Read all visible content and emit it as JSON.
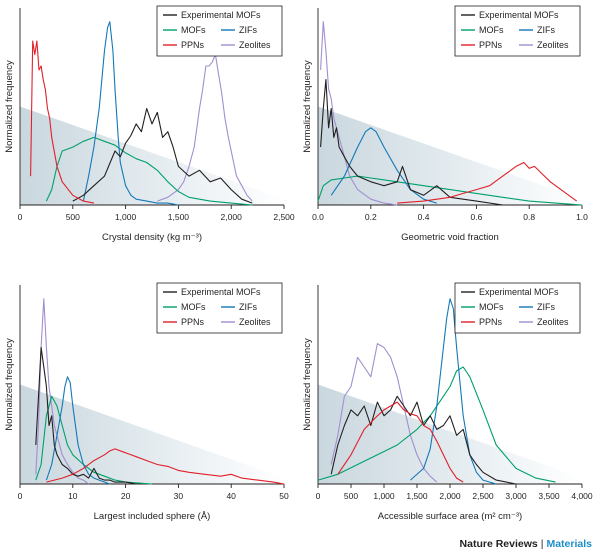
{
  "colors": {
    "Experimental MOFs": "#231f20",
    "MOFs": "#00a06b",
    "ZIFs": "#1478b8",
    "PPNs": "#e0202a",
    "Zeolites": "#a18fcf",
    "shade": "#d5e0e6"
  },
  "legend_entries": [
    {
      "name": "Experimental MOFs",
      "label": "Experimental MOFs"
    },
    {
      "name": "MOFs",
      "label": "MOFs"
    },
    {
      "name": "ZIFs",
      "label": "ZIFs"
    },
    {
      "name": "PPNs",
      "label": "PPNs"
    },
    {
      "name": "Zeolites",
      "label": "Zeolites"
    }
  ],
  "footer": {
    "journal": "Nature Reviews",
    "separator": "|",
    "section": "Materials"
  },
  "chart_data": [
    {
      "type": "line",
      "ylabel": "Normalized frequency",
      "xlabel": "Crystal density (kg m⁻³)",
      "xlim": [
        0,
        2500
      ],
      "ylim": [
        0,
        1
      ],
      "xticks": [
        0,
        500,
        1000,
        1500,
        2000,
        2500
      ],
      "xtick_labels": [
        "0",
        "500",
        "1,000",
        "1,500",
        "2,000",
        "2,500"
      ],
      "legend_position": "top-right",
      "series": [
        {
          "name": "Zeolites",
          "x": [
            1300,
            1400,
            1500,
            1550,
            1600,
            1650,
            1700,
            1730,
            1760,
            1790,
            1820,
            1850,
            1880,
            1910,
            1940,
            1970,
            2000,
            2050,
            2100,
            2150,
            2200
          ],
          "y": [
            0.02,
            0.04,
            0.08,
            0.12,
            0.2,
            0.3,
            0.5,
            0.6,
            0.72,
            0.72,
            0.74,
            0.78,
            0.68,
            0.58,
            0.45,
            0.36,
            0.28,
            0.15,
            0.1,
            0.05,
            0.02
          ]
        },
        {
          "name": "MOFs",
          "x": [
            250,
            300,
            350,
            400,
            500,
            600,
            700,
            800,
            900,
            1000,
            1100,
            1200,
            1300,
            1400,
            1500,
            1600,
            1800,
            2000,
            2200
          ],
          "y": [
            0.02,
            0.08,
            0.2,
            0.28,
            0.3,
            0.33,
            0.35,
            0.33,
            0.31,
            0.27,
            0.24,
            0.22,
            0.18,
            0.12,
            0.07,
            0.04,
            0.02,
            0.01,
            0
          ]
        },
        {
          "name": "ZIFs",
          "x": [
            600,
            650,
            700,
            750,
            800,
            830,
            850,
            880,
            900,
            930,
            950,
            1000,
            1050,
            1100,
            1200,
            1300,
            1400,
            1500
          ],
          "y": [
            0.02,
            0.15,
            0.3,
            0.5,
            0.8,
            0.92,
            0.95,
            0.8,
            0.6,
            0.35,
            0.22,
            0.1,
            0.05,
            0.03,
            0.02,
            0.01,
            0.01,
            0
          ]
        },
        {
          "name": "Experimental MOFs",
          "x": [
            500,
            600,
            700,
            800,
            900,
            950,
            1000,
            1050,
            1100,
            1150,
            1200,
            1250,
            1300,
            1350,
            1400,
            1450,
            1500,
            1600,
            1700,
            1800,
            1900,
            2000,
            2100,
            2200
          ],
          "y": [
            0.02,
            0.05,
            0.1,
            0.15,
            0.28,
            0.25,
            0.32,
            0.36,
            0.42,
            0.38,
            0.5,
            0.42,
            0.48,
            0.35,
            0.38,
            0.3,
            0.2,
            0.15,
            0.18,
            0.12,
            0.14,
            0.08,
            0.03,
            0.01
          ]
        },
        {
          "name": "PPNs",
          "x": [
            100,
            120,
            140,
            160,
            180,
            200,
            220,
            240,
            260,
            280,
            300,
            350,
            400,
            500,
            600,
            700
          ],
          "y": [
            0.15,
            0.85,
            0.78,
            0.85,
            0.7,
            0.72,
            0.65,
            0.6,
            0.5,
            0.45,
            0.35,
            0.2,
            0.12,
            0.05,
            0.02,
            0.01
          ]
        }
      ]
    },
    {
      "type": "line",
      "ylabel": "Normalized frequency",
      "xlabel": "Geometric void fraction",
      "xlim": [
        0,
        1
      ],
      "ylim": [
        0,
        1
      ],
      "xticks": [
        0,
        0.2,
        0.4,
        0.6,
        0.8,
        1.0
      ],
      "xtick_labels": [
        "0.0",
        "0.2",
        "0.4",
        "0.6",
        "0.8",
        "1.0"
      ],
      "legend_position": "top-right",
      "series": [
        {
          "name": "Zeolites",
          "x": [
            0.01,
            0.02,
            0.03,
            0.04,
            0.05,
            0.06,
            0.07,
            0.08,
            0.1,
            0.12,
            0.15,
            0.2,
            0.25,
            0.3
          ],
          "y": [
            0.7,
            0.95,
            0.8,
            0.6,
            0.55,
            0.45,
            0.4,
            0.35,
            0.25,
            0.15,
            0.08,
            0.03,
            0.01,
            0
          ]
        },
        {
          "name": "MOFs",
          "x": [
            0,
            0.02,
            0.05,
            0.1,
            0.15,
            0.2,
            0.3,
            0.4,
            0.5,
            0.6,
            0.7,
            0.8,
            0.9,
            1.0
          ],
          "y": [
            0.02,
            0.1,
            0.13,
            0.14,
            0.15,
            0.14,
            0.12,
            0.1,
            0.08,
            0.06,
            0.04,
            0.02,
            0.01,
            0
          ]
        },
        {
          "name": "ZIFs",
          "x": [
            0.05,
            0.1,
            0.15,
            0.18,
            0.2,
            0.22,
            0.25,
            0.3,
            0.35,
            0.4,
            0.45
          ],
          "y": [
            0.05,
            0.15,
            0.3,
            0.38,
            0.4,
            0.38,
            0.3,
            0.18,
            0.08,
            0.03,
            0.01
          ]
        },
        {
          "name": "Experimental MOFs",
          "x": [
            0.01,
            0.02,
            0.03,
            0.04,
            0.05,
            0.06,
            0.07,
            0.08,
            0.1,
            0.12,
            0.15,
            0.2,
            0.25,
            0.3,
            0.32,
            0.35,
            0.4,
            0.45,
            0.5,
            0.55,
            0.6,
            0.7
          ],
          "y": [
            0.3,
            0.5,
            0.65,
            0.4,
            0.5,
            0.35,
            0.4,
            0.3,
            0.25,
            0.2,
            0.15,
            0.12,
            0.1,
            0.12,
            0.2,
            0.08,
            0.05,
            0.1,
            0.04,
            0.03,
            0.02,
            0
          ]
        },
        {
          "name": "PPNs",
          "x": [
            0.3,
            0.4,
            0.5,
            0.55,
            0.6,
            0.65,
            0.7,
            0.75,
            0.78,
            0.8,
            0.82,
            0.85,
            0.88,
            0.9,
            0.92,
            0.95,
            0.98
          ],
          "y": [
            0.01,
            0.02,
            0.04,
            0.06,
            0.08,
            0.1,
            0.15,
            0.2,
            0.22,
            0.19,
            0.2,
            0.16,
            0.12,
            0.1,
            0.08,
            0.05,
            0.02
          ]
        }
      ]
    },
    {
      "type": "line",
      "ylabel": "Normalized frequency",
      "xlabel": "Largest included sphere (Å)",
      "xlim": [
        0,
        50
      ],
      "ylim": [
        0,
        1
      ],
      "xticks": [
        0,
        10,
        20,
        30,
        40,
        50
      ],
      "xtick_labels": [
        "0",
        "10",
        "20",
        "30",
        "40",
        "50"
      ],
      "legend_position": "top-right",
      "series": [
        {
          "name": "Zeolites",
          "x": [
            3,
            3.5,
            4,
            4.5,
            5,
            5.5,
            6,
            6.5,
            7,
            8,
            9,
            10,
            11,
            12,
            13
          ],
          "y": [
            0.05,
            0.3,
            0.7,
            0.95,
            0.7,
            0.5,
            0.4,
            0.3,
            0.25,
            0.15,
            0.1,
            0.06,
            0.03,
            0.02,
            0
          ]
        },
        {
          "name": "MOFs",
          "x": [
            3,
            4,
            5,
            6,
            7,
            8,
            9,
            10,
            12,
            14,
            16,
            18,
            20,
            25
          ],
          "y": [
            0.02,
            0.1,
            0.35,
            0.45,
            0.4,
            0.3,
            0.2,
            0.15,
            0.1,
            0.06,
            0.04,
            0.02,
            0.01,
            0
          ]
        },
        {
          "name": "ZIFs",
          "x": [
            5,
            6,
            7,
            8,
            8.5,
            9,
            9.5,
            10,
            11,
            12,
            13,
            14,
            15,
            17
          ],
          "y": [
            0.02,
            0.1,
            0.25,
            0.4,
            0.5,
            0.55,
            0.52,
            0.4,
            0.2,
            0.1,
            0.05,
            0.03,
            0.02,
            0
          ]
        },
        {
          "name": "Experimental MOFs",
          "x": [
            3,
            3.5,
            4,
            4.5,
            5,
            5.5,
            6,
            6.5,
            7,
            8,
            9,
            10,
            11,
            12,
            13,
            14,
            15,
            16,
            17,
            18,
            20,
            22
          ],
          "y": [
            0.2,
            0.45,
            0.7,
            0.6,
            0.5,
            0.3,
            0.35,
            0.2,
            0.15,
            0.1,
            0.08,
            0.05,
            0.04,
            0.05,
            0.03,
            0.08,
            0.03,
            0.02,
            0.02,
            0.01,
            0.01,
            0
          ]
        },
        {
          "name": "PPNs",
          "x": [
            5,
            8,
            10,
            12,
            14,
            16,
            17,
            18,
            20,
            22,
            24,
            26,
            28,
            30,
            32,
            35,
            38,
            40,
            42,
            45,
            48,
            50
          ],
          "y": [
            0.01,
            0.03,
            0.05,
            0.08,
            0.12,
            0.15,
            0.17,
            0.18,
            0.16,
            0.14,
            0.12,
            0.1,
            0.09,
            0.07,
            0.06,
            0.05,
            0.04,
            0.05,
            0.03,
            0.02,
            0.01,
            0
          ]
        }
      ]
    },
    {
      "type": "line",
      "ylabel": "Normalized frequency",
      "xlabel": "Accessible surface area (m² cm⁻³)",
      "xlim": [
        0,
        4000
      ],
      "ylim": [
        0,
        1
      ],
      "xticks": [
        0,
        500,
        1000,
        1500,
        2000,
        2500,
        3000,
        3500,
        4000
      ],
      "xtick_labels": [
        "0",
        "500",
        "1,000",
        "1,500",
        "2,000",
        "2,500",
        "3,000",
        "3,500",
        "4,000"
      ],
      "legend_position": "top-right",
      "series": [
        {
          "name": "Zeolites",
          "x": [
            200,
            300,
            400,
            500,
            600,
            700,
            800,
            900,
            1000,
            1100,
            1200,
            1300,
            1400,
            1500,
            1600,
            1700,
            1800
          ],
          "y": [
            0.1,
            0.25,
            0.45,
            0.5,
            0.65,
            0.6,
            0.55,
            0.72,
            0.7,
            0.65,
            0.55,
            0.4,
            0.25,
            0.15,
            0.08,
            0.04,
            0.01
          ]
        },
        {
          "name": "MOFs",
          "x": [
            0,
            300,
            600,
            900,
            1200,
            1500,
            1700,
            1900,
            2000,
            2100,
            2200,
            2300,
            2500,
            2700,
            3000,
            3300,
            3600
          ],
          "y": [
            0.02,
            0.05,
            0.1,
            0.15,
            0.2,
            0.28,
            0.35,
            0.45,
            0.5,
            0.58,
            0.6,
            0.55,
            0.38,
            0.2,
            0.08,
            0.03,
            0.01
          ]
        },
        {
          "name": "ZIFs",
          "x": [
            1400,
            1600,
            1700,
            1800,
            1900,
            1950,
            2000,
            2050,
            2100,
            2200,
            2300,
            2400,
            2500,
            2700
          ],
          "y": [
            0.02,
            0.08,
            0.18,
            0.4,
            0.7,
            0.85,
            0.95,
            0.9,
            0.7,
            0.35,
            0.15,
            0.06,
            0.02,
            0
          ]
        },
        {
          "name": "Experimental MOFs",
          "x": [
            200,
            300,
            400,
            500,
            600,
            700,
            800,
            900,
            1000,
            1100,
            1200,
            1300,
            1400,
            1500,
            1600,
            1700,
            1800,
            1900,
            2000,
            2100,
            2200,
            2300,
            2400,
            2500,
            2700,
            3000
          ],
          "y": [
            0.05,
            0.2,
            0.3,
            0.38,
            0.35,
            0.4,
            0.3,
            0.42,
            0.35,
            0.38,
            0.45,
            0.4,
            0.35,
            0.42,
            0.3,
            0.35,
            0.28,
            0.3,
            0.35,
            0.25,
            0.28,
            0.15,
            0.1,
            0.06,
            0.02,
            0
          ]
        },
        {
          "name": "PPNs",
          "x": [
            300,
            500,
            700,
            900,
            1000,
            1100,
            1200,
            1300,
            1400,
            1500,
            1600,
            1700,
            1800,
            1900,
            2000,
            2100,
            2200
          ],
          "y": [
            0.05,
            0.15,
            0.28,
            0.35,
            0.38,
            0.4,
            0.42,
            0.38,
            0.36,
            0.35,
            0.3,
            0.28,
            0.22,
            0.15,
            0.08,
            0.03,
            0.01
          ]
        }
      ]
    }
  ]
}
